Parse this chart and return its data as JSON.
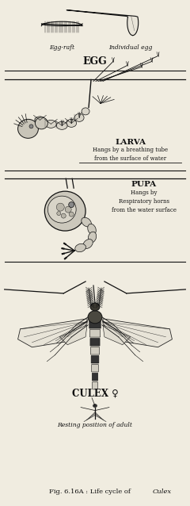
{
  "bg_color": "#f0ece0",
  "text_color": "#111111",
  "section_labels": {
    "egg": "EGG",
    "larva": "LARVA",
    "pupa": "PUPA",
    "adult": "CULEX ♀"
  },
  "annotations": {
    "egg_raft": "Egg-raft",
    "individual_egg": "Individual egg",
    "larva_desc": "Hangs by a breathing tube\nfrom the surface of water",
    "pupa_desc": "Hangs by\nRespiratory horns\nfrom the water surface",
    "resting": "Resting position of adult"
  },
  "caption_normal": "Fig. 6.16A : Life cycle of ",
  "caption_italic": "Culex",
  "figsize": [
    2.4,
    6.38
  ],
  "dpi": 100
}
